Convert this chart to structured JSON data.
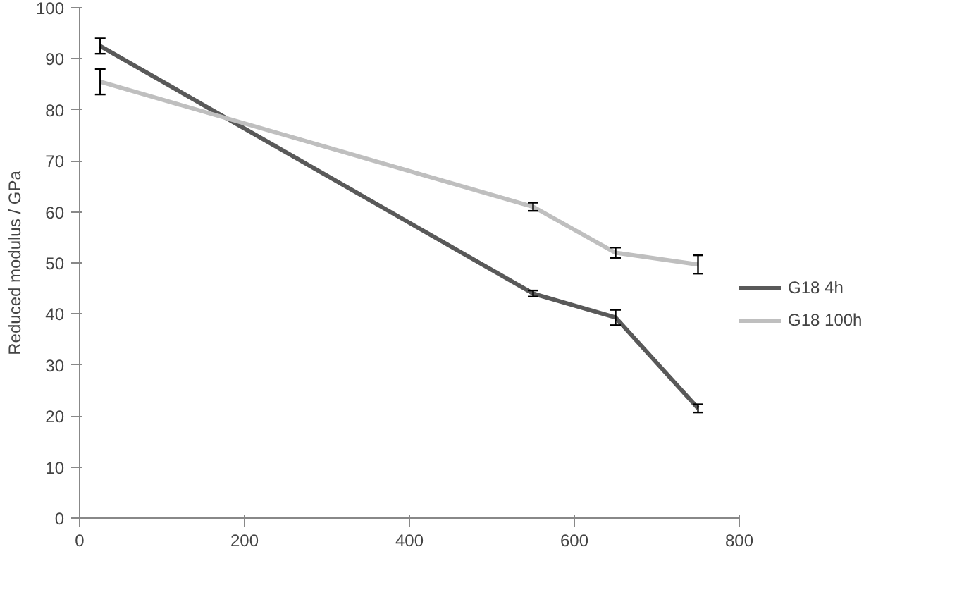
{
  "chart_data": {
    "type": "line",
    "ylabel": "Reduced modulus / GPa",
    "xlim": [
      0,
      800
    ],
    "xticks": [
      0,
      200,
      400,
      600,
      800
    ],
    "ylim": [
      0,
      100
    ],
    "yticks": [
      0,
      10,
      20,
      30,
      40,
      50,
      60,
      70,
      80,
      90,
      100
    ],
    "grid": false,
    "legend": "right",
    "marker": "none",
    "line_style": "solid",
    "series": [
      {
        "name": "G18 4h",
        "color": "#595959",
        "x": [
          25,
          550,
          650,
          750
        ],
        "values": [
          92.5,
          44,
          39.3,
          21.5
        ],
        "errors": [
          1.5,
          0.6,
          1.5,
          0.8
        ]
      },
      {
        "name": "G18 100h",
        "color": "#bfbfbf",
        "x": [
          25,
          550,
          650,
          750
        ],
        "values": [
          85.5,
          61,
          52,
          49.7
        ],
        "errors": [
          2.5,
          0.8,
          1,
          1.8
        ]
      }
    ]
  }
}
